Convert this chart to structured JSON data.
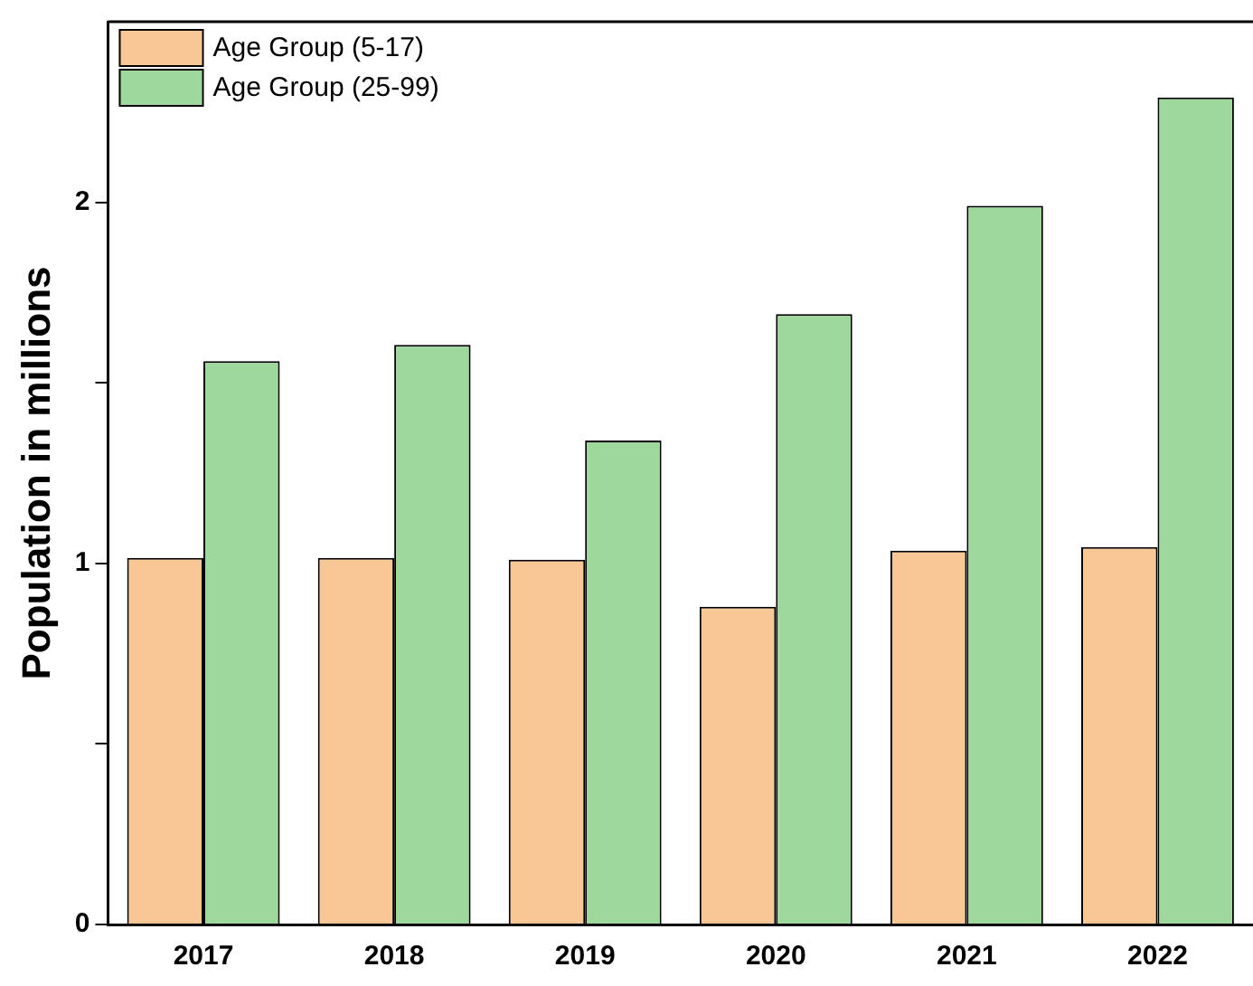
{
  "chart_data": {
    "type": "bar",
    "ylabel": "Population in millions",
    "categories": [
      "2017",
      "2018",
      "2019",
      "2020",
      "2021",
      "2022"
    ],
    "series": [
      {
        "name": "Age Group (5-17)",
        "color": "#f9c696",
        "values": [
          1.015,
          1.015,
          1.01,
          0.88,
          1.035,
          1.045
        ]
      },
      {
        "name": "Age Group (25-99)",
        "color": "#9fd89c",
        "values": [
          1.56,
          1.605,
          1.34,
          1.69,
          1.99,
          2.29
        ]
      }
    ],
    "ylim": [
      0,
      2.5
    ],
    "yticks": [
      0,
      {
        "value": 0.5,
        "label": null
      },
      1,
      {
        "value": 1.5,
        "label": null
      },
      2
    ],
    "grid": false,
    "legend": "top left"
  }
}
